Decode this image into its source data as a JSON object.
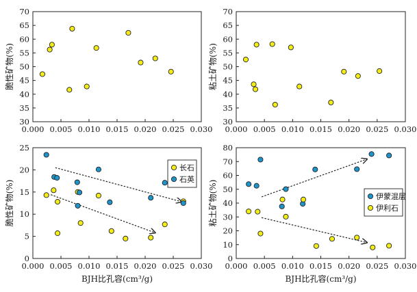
{
  "chart_data": [
    {
      "type": "scatter",
      "xlabel": "",
      "ylabel": "脆性矿物(%)",
      "xlim": [
        0.0,
        0.03
      ],
      "ylim": [
        30,
        70
      ],
      "xticks": [
        "0.000",
        "0.005",
        "0.010",
        "0.015",
        "0.020",
        "0.025",
        "0.030"
      ],
      "yticks": [
        "30",
        "35",
        "40",
        "45",
        "50",
        "55",
        "60",
        "65",
        "70"
      ],
      "grid": false,
      "series": [
        {
          "color": "#f3ec18",
          "points": [
            {
              "x": 0.0017,
              "y": 47.3
            },
            {
              "x": 0.003,
              "y": 56.2
            },
            {
              "x": 0.0034,
              "y": 58.0
            },
            {
              "x": 0.0065,
              "y": 41.6
            },
            {
              "x": 0.007,
              "y": 63.8
            },
            {
              "x": 0.0096,
              "y": 42.8
            },
            {
              "x": 0.0113,
              "y": 56.8
            },
            {
              "x": 0.017,
              "y": 62.3
            },
            {
              "x": 0.0192,
              "y": 51.5
            },
            {
              "x": 0.0218,
              "y": 53.0
            },
            {
              "x": 0.0246,
              "y": 48.2
            }
          ]
        }
      ],
      "legend": null,
      "arrows": []
    },
    {
      "type": "scatter",
      "xlabel": "",
      "ylabel": "粘土矿物(%)",
      "xlim": [
        0.0,
        0.03
      ],
      "ylim": [
        30,
        70
      ],
      "xticks": [
        "0.000",
        "0.005",
        "0.010",
        "0.015",
        "0.020",
        "0.025",
        "0.030"
      ],
      "yticks": [
        "30",
        "35",
        "40",
        "45",
        "50",
        "55",
        "60",
        "65",
        "70"
      ],
      "grid": false,
      "series": [
        {
          "color": "#f3ec18",
          "points": [
            {
              "x": 0.0017,
              "y": 52.6
            },
            {
              "x": 0.0031,
              "y": 43.6
            },
            {
              "x": 0.0034,
              "y": 41.8
            },
            {
              "x": 0.0036,
              "y": 58.0
            },
            {
              "x": 0.0064,
              "y": 58.2
            },
            {
              "x": 0.0069,
              "y": 36.2
            },
            {
              "x": 0.0097,
              "y": 57.0
            },
            {
              "x": 0.0112,
              "y": 42.8
            },
            {
              "x": 0.0168,
              "y": 37.0
            },
            {
              "x": 0.0191,
              "y": 48.2
            },
            {
              "x": 0.0216,
              "y": 46.6
            },
            {
              "x": 0.0254,
              "y": 48.4
            }
          ]
        }
      ],
      "legend": null,
      "arrows": []
    },
    {
      "type": "scatter",
      "xlabel": "BJH比孔容(cm³/g)",
      "ylabel": "脆性矿物(%)",
      "xlim": [
        0.0,
        0.03
      ],
      "ylim": [
        0,
        25
      ],
      "xticks": [
        "0.000",
        "0.005",
        "0.010",
        "0.015",
        "0.020",
        "0.025",
        "0.030"
      ],
      "yticks": [
        "0",
        "5",
        "10",
        "15",
        "20",
        "25"
      ],
      "grid": false,
      "series": [
        {
          "name": "长石",
          "color": "#f3ec18",
          "points": [
            {
              "x": 0.0024,
              "y": 14.3
            },
            {
              "x": 0.0037,
              "y": 15.4
            },
            {
              "x": 0.0044,
              "y": 12.8
            },
            {
              "x": 0.0044,
              "y": 5.7
            },
            {
              "x": 0.008,
              "y": 15.0
            },
            {
              "x": 0.0085,
              "y": 8.0
            },
            {
              "x": 0.0117,
              "y": 14.2
            },
            {
              "x": 0.014,
              "y": 6.2
            },
            {
              "x": 0.0165,
              "y": 4.5
            },
            {
              "x": 0.021,
              "y": 4.7
            },
            {
              "x": 0.0235,
              "y": 7.7
            },
            {
              "x": 0.0268,
              "y": 12.9
            }
          ]
        },
        {
          "name": "石英",
          "color": "#1f94c9",
          "points": [
            {
              "x": 0.0024,
              "y": 23.4
            },
            {
              "x": 0.0038,
              "y": 18.4
            },
            {
              "x": 0.0043,
              "y": 18.2
            },
            {
              "x": 0.0079,
              "y": 17.2
            },
            {
              "x": 0.008,
              "y": 11.9
            },
            {
              "x": 0.0083,
              "y": 14.9
            },
            {
              "x": 0.0117,
              "y": 20.1
            },
            {
              "x": 0.0137,
              "y": 12.7
            },
            {
              "x": 0.021,
              "y": 13.7
            },
            {
              "x": 0.0235,
              "y": 17.1
            },
            {
              "x": 0.0268,
              "y": 12.5
            }
          ]
        }
      ],
      "legend": {
        "position": "top-right"
      },
      "arrows": [
        {
          "from": [
            0.004,
            20.5
          ],
          "to": [
            0.0265,
            12.8
          ]
        },
        {
          "from": [
            0.0032,
            14.4
          ],
          "to": [
            0.0218,
            5.8
          ]
        }
      ]
    },
    {
      "type": "scatter",
      "xlabel": "BJH比孔容(cm³/g)",
      "ylabel": "粘土矿物(%)",
      "xlim": [
        0.0,
        0.03
      ],
      "ylim": [
        0,
        80
      ],
      "xticks": [
        "0.000",
        "0.005",
        "0.010",
        "0.015",
        "0.020",
        "0.025",
        "0.030"
      ],
      "yticks": [
        "0",
        "10",
        "20",
        "30",
        "40",
        "50",
        "60",
        "70",
        "80"
      ],
      "grid": false,
      "series": [
        {
          "name": "伊蒙混层",
          "color": "#1f94c9",
          "points": [
            {
              "x": 0.0022,
              "y": 53.7
            },
            {
              "x": 0.0036,
              "y": 52.5
            },
            {
              "x": 0.0043,
              "y": 71.4
            },
            {
              "x": 0.0081,
              "y": 37.6
            },
            {
              "x": 0.0088,
              "y": 50.1
            },
            {
              "x": 0.0118,
              "y": 39.5
            },
            {
              "x": 0.014,
              "y": 64.3
            },
            {
              "x": 0.0214,
              "y": 64.5
            },
            {
              "x": 0.024,
              "y": 75.4
            },
            {
              "x": 0.0271,
              "y": 74.4
            }
          ]
        },
        {
          "name": "伊利石",
          "color": "#f3ec18",
          "points": [
            {
              "x": 0.0022,
              "y": 34.0
            },
            {
              "x": 0.0038,
              "y": 33.8
            },
            {
              "x": 0.0043,
              "y": 18.0
            },
            {
              "x": 0.0082,
              "y": 42.6
            },
            {
              "x": 0.0088,
              "y": 30.2
            },
            {
              "x": 0.0119,
              "y": 42.6
            },
            {
              "x": 0.0142,
              "y": 9.0
            },
            {
              "x": 0.017,
              "y": 14.2
            },
            {
              "x": 0.0214,
              "y": 15.1
            },
            {
              "x": 0.0242,
              "y": 8.0
            },
            {
              "x": 0.0271,
              "y": 9.2
            }
          ]
        }
      ],
      "legend": {
        "position": "right-middle"
      },
      "arrows": [
        {
          "from": [
            0.0045,
            44.5
          ],
          "to": [
            0.0232,
            71.8
          ]
        },
        {
          "from": [
            0.0045,
            29.5
          ],
          "to": [
            0.0232,
            11.5
          ]
        }
      ]
    }
  ]
}
